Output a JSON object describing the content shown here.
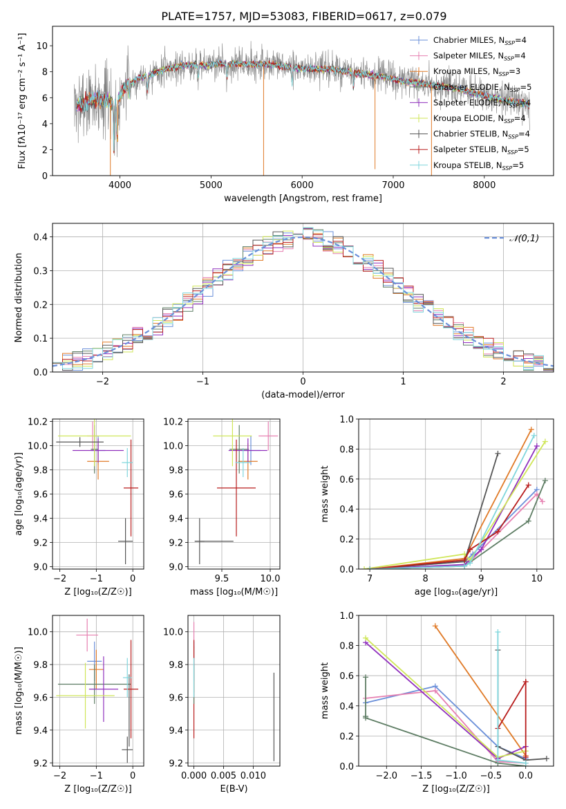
{
  "figure_title": "PLATE=1757, MJD=53083, FIBERID=0617, z=0.079",
  "colors": {
    "chabrier_miles": "#6a8fd9",
    "salpeter_miles": "#e67fb0",
    "kroupa_miles": "#e07a27",
    "chabrier_elodie": "#5e7d64",
    "salpeter_elodie": "#8f2fbd",
    "kroupa_elodie": "#cfe657",
    "chabrier_stelib": "#555555",
    "salpeter_stelib": "#b81c1c",
    "kroupa_stelib": "#7fd6dc",
    "data_gray": "#7f7f7f",
    "grid": "#b0b0b0"
  },
  "chart_data": [
    {
      "id": "spectrum",
      "type": "line",
      "xlabel": "wavelength [Angstrom, rest frame]",
      "ylabel": "Flux [fλ10⁻¹⁷ erg cm⁻² s⁻¹ A⁻¹]",
      "xlim": [
        3260,
        8760
      ],
      "ylim": [
        0,
        11.5
      ],
      "xticks": [
        4000,
        5000,
        6000,
        7000,
        8000
      ],
      "yticks": [
        0,
        2,
        4,
        6,
        8,
        10
      ],
      "grid": false,
      "legend_position": "top-right",
      "legend": [
        {
          "key": "chabrier_miles",
          "pre": "Chabrier MILES, N",
          "sub": "SSP",
          "post": "=4"
        },
        {
          "key": "salpeter_miles",
          "pre": "Salpeter MILES, N",
          "sub": "SSP",
          "post": "=4"
        },
        {
          "key": "kroupa_miles",
          "pre": "Kroupa MILES, N",
          "sub": "SSP",
          "post": "=3"
        },
        {
          "key": "chabrier_elodie",
          "pre": "Chabrier ELODIE, N",
          "sub": "SSP",
          "post": "=5"
        },
        {
          "key": "salpeter_elodie",
          "pre": "Salpeter ELODIE, N",
          "sub": "SSP",
          "post": "=4"
        },
        {
          "key": "kroupa_elodie",
          "pre": "Kroupa ELODIE, N",
          "sub": "SSP",
          "post": "=4"
        },
        {
          "key": "chabrier_stelib",
          "pre": "Chabrier STELIB, N",
          "sub": "SSP",
          "post": "=4"
        },
        {
          "key": "salpeter_stelib",
          "pre": "Salpeter STELIB, N",
          "sub": "SSP",
          "post": "=5"
        },
        {
          "key": "kroupa_stelib",
          "pre": "Kroupa STELIB, N",
          "sub": "SSP",
          "post": "=5"
        }
      ],
      "continuum": [
        [
          3550,
          5.4
        ],
        [
          3650,
          5.7
        ],
        [
          3750,
          5.9
        ],
        [
          3850,
          5.8
        ],
        [
          3950,
          5.5
        ],
        [
          4050,
          6.8
        ],
        [
          4200,
          7.5
        ],
        [
          4350,
          7.8
        ],
        [
          4500,
          8.2
        ],
        [
          4700,
          8.5
        ],
        [
          4900,
          8.5
        ],
        [
          5100,
          8.6
        ],
        [
          5300,
          8.6
        ],
        [
          5500,
          8.6
        ],
        [
          5700,
          8.5
        ],
        [
          5900,
          8.3
        ],
        [
          6100,
          8.2
        ],
        [
          6300,
          8.2
        ],
        [
          6500,
          8.0
        ],
        [
          6700,
          7.8
        ],
        [
          6900,
          7.6
        ],
        [
          7100,
          7.3
        ],
        [
          7300,
          7.1
        ],
        [
          7500,
          6.9
        ],
        [
          7700,
          6.7
        ],
        [
          7900,
          6.3
        ],
        [
          8100,
          6.0
        ],
        [
          8300,
          5.7
        ],
        [
          8500,
          5.5
        ]
      ],
      "absorptions": [
        [
          3934,
          3.5
        ],
        [
          3968,
          3.0
        ],
        [
          4102,
          1.0
        ],
        [
          4300,
          1.2
        ],
        [
          4861,
          1.0
        ],
        [
          5175,
          1.2
        ],
        [
          5890,
          1.2
        ],
        [
          6563,
          1.3
        ],
        [
          8498,
          1.5
        ],
        [
          8542,
          1.6
        ],
        [
          8662,
          1.5
        ]
      ],
      "spikes": [
        {
          "x": 3895,
          "to": 0
        },
        {
          "x": 3975,
          "to": 2.6
        },
        {
          "x": 5577,
          "to": 0
        },
        {
          "x": 6800,
          "to": 0.5
        },
        {
          "x": 7420,
          "to": 0
        }
      ]
    },
    {
      "id": "residuals",
      "type": "histogram",
      "xlabel": "(data-model)/error",
      "ylabel": "Normed distribution",
      "xlim": [
        -2.5,
        2.5
      ],
      "ylim": [
        0,
        0.44
      ],
      "xticks": [
        -2,
        -1,
        0,
        1,
        2
      ],
      "yticks": [
        0.0,
        0.1,
        0.2,
        0.3,
        0.4
      ],
      "grid": true,
      "bins": {
        "start": -2.5,
        "width": 0.1,
        "count": 50
      },
      "reference_curve": "𝒩(0,1)",
      "legend_position": "top-right",
      "series_keys": [
        "chabrier_miles",
        "salpeter_miles",
        "kroupa_miles",
        "chabrier_elodie",
        "salpeter_elodie",
        "kroupa_elodie",
        "chabrier_stelib",
        "salpeter_stelib",
        "kroupa_stelib"
      ]
    },
    {
      "id": "age-vs-z",
      "type": "scatter",
      "xlabel": "Z [log₁₀(Z/Z☉)]",
      "ylabel": "age  [log₁₀(age/yr)]",
      "xlim": [
        -2.2,
        0.3
      ],
      "ylim": [
        8.98,
        10.22
      ],
      "xticks": [
        -2,
        -1,
        0
      ],
      "yticks": [
        9.0,
        9.2,
        9.4,
        9.6,
        9.8,
        10.0,
        10.2
      ],
      "grid": true,
      "points": [
        {
          "key": "chabrier_miles",
          "x": -0.95,
          "xerr": 0.2,
          "y": 9.96,
          "yerr": 0.12
        },
        {
          "key": "salpeter_miles",
          "x": -1.1,
          "xerr": 0.15,
          "y": 10.08,
          "yerr": 0.12
        },
        {
          "key": "kroupa_miles",
          "x": -0.95,
          "xerr": 0.3,
          "y": 9.87,
          "yerr": 0.15
        },
        {
          "key": "chabrier_elodie",
          "x": -1.05,
          "xerr": 0.1,
          "y": 9.97,
          "yerr": 0.2
        },
        {
          "key": "salpeter_elodie",
          "x": -0.95,
          "xerr": 0.7,
          "y": 9.96,
          "yerr": 0.1
        },
        {
          "key": "kroupa_elodie",
          "x": -1.05,
          "xerr": 1.0,
          "y": 10.08,
          "yerr": 0.25
        },
        {
          "key": "chabrier_stelib",
          "x": -0.2,
          "xerr": 0.2,
          "y": 9.21,
          "yerr": 0.19
        },
        {
          "key": "salpeter_stelib",
          "x": -0.05,
          "xerr": 0.2,
          "y": 9.65,
          "yerr": 0.4
        },
        {
          "key": "kroupa_stelib",
          "x": -0.15,
          "xerr": 0.15,
          "y": 9.86,
          "yerr": 0.12
        },
        {
          "key": "chabrier_stelib",
          "x": -1.45,
          "xerr": 0.65,
          "y": 10.03,
          "yerr": 0.04
        }
      ]
    },
    {
      "id": "age-vs-mass",
      "type": "scatter",
      "xlabel": "mass [log₁₀(M/M☉)]",
      "ylabel": "",
      "xlim": [
        9.15,
        10.1
      ],
      "ylim": [
        8.98,
        10.22
      ],
      "xticks": [
        9.5,
        10.0
      ],
      "yticks": [
        9.0,
        9.2,
        9.4,
        9.6,
        9.8,
        10.0,
        10.2
      ],
      "grid": true,
      "points": [
        {
          "key": "chabrier_miles",
          "x": 9.8,
          "xerr": 0.1,
          "y": 9.96,
          "yerr": 0.12
        },
        {
          "key": "salpeter_miles",
          "x": 9.98,
          "xerr": 0.1,
          "y": 10.08,
          "yerr": 0.12
        },
        {
          "key": "kroupa_miles",
          "x": 9.77,
          "xerr": 0.1,
          "y": 9.87,
          "yerr": 0.15
        },
        {
          "key": "chabrier_elodie",
          "x": 9.68,
          "xerr": 0.1,
          "y": 9.97,
          "yerr": 0.2
        },
        {
          "key": "salpeter_elodie",
          "x": 9.77,
          "xerr": 0.2,
          "y": 9.96,
          "yerr": 0.1
        },
        {
          "key": "kroupa_elodie",
          "x": 9.61,
          "xerr": 0.2,
          "y": 10.08,
          "yerr": 0.25
        },
        {
          "key": "chabrier_stelib",
          "x": 9.27,
          "xerr": 0.05,
          "y": 9.21,
          "yerr": 0.19
        },
        {
          "key": "chabrier_stelib",
          "x": 9.42,
          "xerr": 0.2,
          "y": 9.21,
          "yerr": 0
        },
        {
          "key": "salpeter_stelib",
          "x": 9.65,
          "xerr": 0.2,
          "y": 9.65,
          "yerr": 0.4
        },
        {
          "key": "kroupa_stelib",
          "x": 9.72,
          "xerr": 0.08,
          "y": 9.86,
          "yerr": 0.12
        }
      ]
    },
    {
      "id": "mass-weight-vs-age",
      "type": "line",
      "xlabel": "age  [log₁₀(age/yr)]",
      "ylabel": "mass weight",
      "xlim": [
        6.8,
        10.3
      ],
      "ylim": [
        0,
        1.0
      ],
      "xticks": [
        7,
        8,
        9,
        10
      ],
      "yticks": [
        0.0,
        0.2,
        0.4,
        0.6,
        0.8,
        1.0
      ],
      "grid": true,
      "series": [
        {
          "key": "chabrier_miles",
          "x": [
            7.0,
            8.7,
            8.85,
            10.0
          ],
          "y": [
            0.0,
            0.05,
            0.1,
            0.53
          ]
        },
        {
          "key": "salpeter_miles",
          "x": [
            7.0,
            8.7,
            8.8,
            10.0,
            10.1
          ],
          "y": [
            0.0,
            0.02,
            0.05,
            0.5,
            0.45
          ]
        },
        {
          "key": "kroupa_miles",
          "x": [
            7.0,
            8.7,
            9.9
          ],
          "y": [
            0.0,
            0.07,
            0.93
          ]
        },
        {
          "key": "chabrier_elodie",
          "x": [
            7.0,
            8.7,
            9.85,
            10.15
          ],
          "y": [
            0.0,
            0.02,
            0.32,
            0.59
          ]
        },
        {
          "key": "salpeter_elodie",
          "x": [
            7.0,
            8.7,
            9.0,
            10.0
          ],
          "y": [
            0.0,
            0.03,
            0.13,
            0.82
          ]
        },
        {
          "key": "kroupa_elodie",
          "x": [
            6.9,
            8.7,
            8.8,
            10.15
          ],
          "y": [
            0.0,
            0.1,
            0.06,
            0.85
          ]
        },
        {
          "key": "chabrier_stelib",
          "x": [
            7.0,
            8.7,
            9.3
          ],
          "y": [
            0.0,
            0.05,
            0.77
          ]
        },
        {
          "key": "salpeter_stelib",
          "x": [
            7.0,
            8.7,
            8.8,
            9.3,
            9.85
          ],
          "y": [
            0.0,
            0.06,
            0.13,
            0.25,
            0.56
          ]
        },
        {
          "key": "kroupa_stelib",
          "x": [
            7.0,
            8.7,
            8.8,
            9.95
          ],
          "y": [
            0.0,
            0.02,
            0.04,
            0.89
          ]
        }
      ]
    },
    {
      "id": "mass-vs-z",
      "type": "scatter",
      "xlabel": "Z [log₁₀(Z/Z☉)]",
      "ylabel": "mass [log₁₀(M/M☉)]",
      "xlim": [
        -2.2,
        0.3
      ],
      "ylim": [
        9.18,
        10.1
      ],
      "xticks": [
        -2,
        -1,
        0
      ],
      "yticks": [
        9.2,
        9.4,
        9.6,
        9.8,
        10.0
      ],
      "grid": true,
      "points": [
        {
          "key": "salpeter_miles",
          "x": -1.25,
          "xerr": 0.3,
          "y": 9.98,
          "yerr": 0.1
        },
        {
          "key": "chabrier_miles",
          "x": -1.05,
          "xerr": 0.2,
          "y": 9.82,
          "yerr": 0.12
        },
        {
          "key": "kroupa_miles",
          "x": -1.0,
          "xerr": 0.2,
          "y": 9.77,
          "yerr": 0.12
        },
        {
          "key": "chabrier_elodie",
          "x": -1.05,
          "xerr": 1.0,
          "y": 9.68,
          "yerr": 0.12
        },
        {
          "key": "salpeter_elodie",
          "x": -0.8,
          "xerr": 0.4,
          "y": 9.65,
          "yerr": 0.2
        },
        {
          "key": "kroupa_elodie",
          "x": -1.3,
          "xerr": 0.8,
          "y": 9.61,
          "yerr": 0.2
        },
        {
          "key": "chabrier_stelib",
          "x": -0.15,
          "xerr": 0.15,
          "y": 9.28,
          "yerr": 0.08
        },
        {
          "key": "chabrier_stelib",
          "x": -0.1,
          "xerr": 0.0,
          "y": 9.52,
          "yerr": 0.22
        },
        {
          "key": "salpeter_stelib",
          "x": -0.05,
          "xerr": 0.2,
          "y": 9.65,
          "yerr": 0.3
        },
        {
          "key": "kroupa_stelib",
          "x": -0.15,
          "xerr": 0.12,
          "y": 9.72,
          "yerr": 0.12
        }
      ]
    },
    {
      "id": "mass-vs-ebv",
      "type": "scatter",
      "xlabel": "E(B-V)",
      "ylabel": "",
      "xlim": [
        -0.001,
        0.0145
      ],
      "ylim": [
        9.18,
        10.1
      ],
      "xticks": [
        0.0,
        0.005,
        0.01
      ],
      "tick_labels": [
        "0.000",
        "0.005",
        "0.010"
      ],
      "yticks": [
        9.2,
        9.4,
        9.6,
        9.8,
        10.0
      ],
      "grid": true,
      "points": [
        {
          "key": "salpeter_miles",
          "x": 0.0,
          "y": 9.98,
          "yerr": 0.08
        },
        {
          "key": "kroupa_miles",
          "x": 0.0,
          "y": 9.77,
          "yerr": 0.14
        },
        {
          "key": "chabrier_miles",
          "x": 0.0,
          "y": 9.82,
          "yerr": 0.12
        },
        {
          "key": "salpeter_stelib",
          "x": 0.0,
          "y": 9.65,
          "yerr": 0.3
        },
        {
          "key": "chabrier_elodie",
          "x": 0.0,
          "y": 9.68,
          "yerr": 0.12
        },
        {
          "key": "kroupa_stelib",
          "x": 0.0,
          "y": 9.72,
          "yerr": 0.12
        },
        {
          "key": "chabrier_stelib",
          "x": 0.0135,
          "y": 9.48,
          "yerr": 0.27
        }
      ]
    },
    {
      "id": "mass-weight-vs-z",
      "type": "line",
      "xlabel": "Z [log₁₀(Z/Z☉)]",
      "ylabel": "mass weight",
      "xlim": [
        -2.4,
        0.4
      ],
      "ylim": [
        0,
        1.0
      ],
      "xticks": [
        -2.0,
        -1.5,
        -1.0,
        -0.5,
        0.0
      ],
      "tick_labels": [
        "−2.0",
        "−1.5",
        "−1.0",
        "−0.5",
        "0.0"
      ],
      "yticks": [
        0.0,
        0.2,
        0.4,
        0.6,
        0.8,
        1.0
      ],
      "grid": true,
      "series": [
        {
          "key": "chabrier_miles",
          "x": [
            -2.3,
            -1.3,
            -0.4,
            0.0
          ],
          "y": [
            0.42,
            0.53,
            0.13,
            0.05
          ]
        },
        {
          "key": "salpeter_miles",
          "x": [
            -2.3,
            -1.3,
            -0.4,
            0.0
          ],
          "y": [
            0.45,
            0.5,
            0.03,
            0.02
          ]
        },
        {
          "key": "kroupa_miles",
          "x": [
            -1.3,
            0.0
          ],
          "y": [
            0.93,
            0.07
          ]
        },
        {
          "key": "chabrier_elodie",
          "x": [
            -2.3,
            -2.3,
            -2.3,
            -0.4,
            0.0
          ],
          "y": [
            0.59,
            0.33,
            0.32,
            0.02,
            0.0
          ]
        },
        {
          "key": "salpeter_elodie",
          "x": [
            -2.3,
            -0.4,
            0.0
          ],
          "y": [
            0.82,
            0.05,
            0.13
          ]
        },
        {
          "key": "kroupa_elodie",
          "x": [
            -2.3,
            -0.4,
            0.0
          ],
          "y": [
            0.85,
            0.06,
            0.1
          ]
        },
        {
          "key": "chabrier_stelib",
          "x": [
            -0.4,
            -0.4,
            0.0,
            0.3
          ],
          "y": [
            0.77,
            0.13,
            0.04,
            0.05
          ]
        },
        {
          "key": "salpeter_stelib",
          "x": [
            -0.4,
            0.0,
            0.0
          ],
          "y": [
            0.25,
            0.56,
            0.06
          ]
        },
        {
          "key": "kroupa_stelib",
          "x": [
            -0.4,
            -0.4,
            0.0
          ],
          "y": [
            0.89,
            0.04,
            0.02
          ]
        }
      ]
    }
  ]
}
